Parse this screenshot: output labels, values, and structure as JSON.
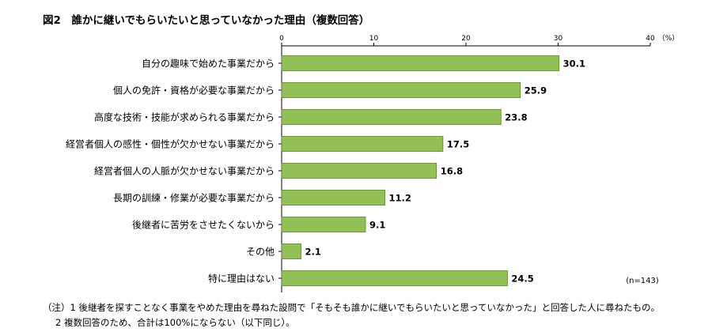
{
  "chart_data": {
    "type": "bar",
    "orientation": "horizontal",
    "title": "図2　誰かに継いでもらいたいと思っていなかった理由（複数回答）",
    "categories": [
      "自分の趣味で始めた事業だから",
      "個人の免許・資格が必要な事業だから",
      "高度な技術・技能が求められる事業だから",
      "経営者個人の感性・個性が欠かせない事業だから",
      "経営者個人の人脈が欠かせない事業だから",
      "長期の訓練・修業が必要な事業だから",
      "後継者に苦労をさせたくないから",
      "その他",
      "特に理由はない"
    ],
    "values": [
      30.1,
      25.9,
      23.8,
      17.5,
      16.8,
      11.2,
      9.1,
      2.1,
      24.5
    ],
    "value_labels": [
      "30.1",
      "25.9",
      "23.8",
      "17.5",
      "16.8",
      "11.2",
      "9.1",
      "2.1",
      "24.5"
    ],
    "xlim": [
      0,
      40
    ],
    "xticks": [
      "0",
      "10",
      "20",
      "30",
      "40"
    ],
    "unit_label": "（%）",
    "sample_note": "(n=143)",
    "grid": false,
    "bar_color": "#92c057",
    "bar_edge_color": "#5d7f2e"
  },
  "notes": {
    "line1": "（注）1 後継者を探すことなく事業をやめた理由を尋ねた設問で「そもそも誰かに継いでもらいたいと思っていなかった」と回答した人に尋ねたもの。",
    "line2": "2 複数回答のため、合計は100%にならない（以下同じ）。"
  }
}
